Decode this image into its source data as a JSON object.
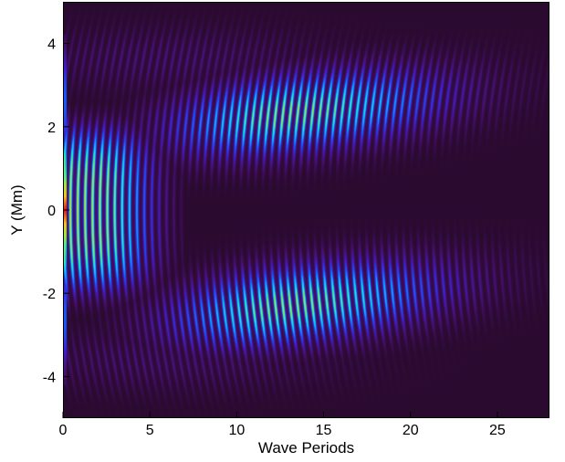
{
  "chart_data": {
    "type": "heatmap",
    "title": "",
    "xlabel": "Wave Periods",
    "ylabel": "Y (Mm)",
    "xlim": [
      0,
      28
    ],
    "ylim": [
      -5,
      5
    ],
    "x_ticks": [
      0,
      5,
      10,
      15,
      20,
      25
    ],
    "y_ticks": [
      -4,
      -2,
      0,
      2,
      4
    ],
    "x_tick_labels": [
      "0",
      "5",
      "10",
      "15",
      "20",
      "25"
    ],
    "y_tick_labels": [
      "-4",
      "-2",
      "0",
      "2",
      "4"
    ],
    "colormap": "jet",
    "background_color": "#2a0a2e",
    "grid": false,
    "legend": "none",
    "features": {
      "wave_fronts_per_unit_x": 2.35,
      "central_beam": {
        "y_center": 0,
        "y_half_width": 1.9,
        "x_start": 0,
        "x_end": 6,
        "peak_intensity": 0.75
      },
      "upper_beam": {
        "y_center": 2.3,
        "y_half_width": 0.9,
        "x_start": 5,
        "x_end": 28,
        "x_peak": 13,
        "peak_intensity": 0.72
      },
      "lower_beam": {
        "y_center": -2.3,
        "y_half_width": 0.9,
        "x_start": 5,
        "x_end": 28,
        "x_peak": 13,
        "peak_intensity": 0.72
      },
      "source_strip": {
        "x": 0.1,
        "y_half_width": 1.6,
        "intensity": 1.0
      }
    }
  }
}
